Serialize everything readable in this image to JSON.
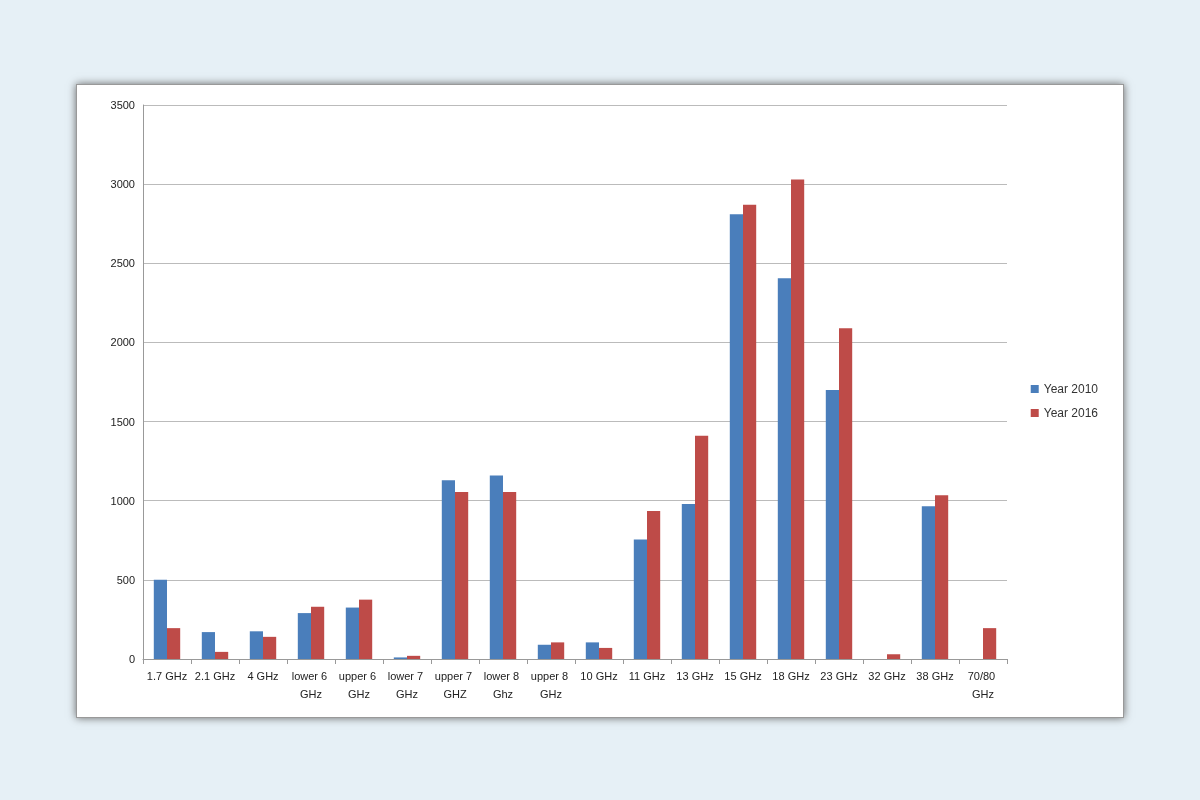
{
  "chart_data": {
    "type": "bar",
    "categories": [
      "1.7 GHz",
      "2.1 GHz",
      "4 GHz",
      "lower 6 GHz",
      "upper 6 GHz",
      "lower 7 GHz",
      "upper 7 GHZ",
      "lower 8 Ghz",
      "upper 8 GHz",
      "10 GHz",
      "11 GHz",
      "13 GHz",
      "15 GHz",
      "18 GHz",
      "23 GHz",
      "32 GHz",
      "38 GHz",
      "70/80 GHz"
    ],
    "series": [
      {
        "name": "Year 2010",
        "color": "#4a7ebb",
        "values": [
          500,
          170,
          175,
          290,
          325,
          10,
          1130,
          1160,
          90,
          105,
          755,
          980,
          2810,
          2405,
          1700,
          null,
          965,
          null
        ]
      },
      {
        "name": "Year 2016",
        "color": "#be4b48",
        "values": [
          195,
          45,
          140,
          330,
          375,
          20,
          1055,
          1055,
          105,
          70,
          935,
          1410,
          2870,
          3030,
          2090,
          30,
          1035,
          195
        ]
      }
    ],
    "ylim": [
      0,
      3500
    ],
    "yticks": [
      0,
      500,
      1000,
      1500,
      2000,
      2500,
      3000,
      3500
    ],
    "grid": "y",
    "legend": "right"
  }
}
